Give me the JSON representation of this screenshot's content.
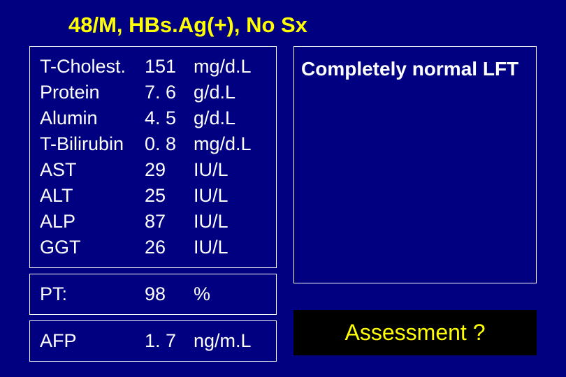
{
  "slide": {
    "title": "48/M, HBs.Ag(+), No Sx",
    "background_color": "#000080",
    "title_color": "#ffff00",
    "text_color": "#ffffff",
    "font_family": "Arial",
    "title_fontsize": 31,
    "body_fontsize": 27
  },
  "labs_main": {
    "type": "table",
    "columns": [
      "test",
      "value",
      "unit"
    ],
    "rows": [
      {
        "test": "T-Cholest.",
        "value": "151",
        "unit": "mg/d.L"
      },
      {
        "test": "Protein",
        "value": "7. 6",
        "unit": "g/d.L"
      },
      {
        "test": "Alumin",
        "value": "4. 5",
        "unit": "g/d.L"
      },
      {
        "test": "T-Bilirubin",
        "value": "0. 8",
        "unit": "mg/d.L"
      },
      {
        "test": "AST",
        "value": "29",
        "unit": "IU/L"
      },
      {
        "test": "ALT",
        "value": "25",
        "unit": "IU/L"
      },
      {
        "test": "ALP",
        "value": "87",
        "unit": "IU/L"
      },
      {
        "test": "GGT",
        "value": "26",
        "unit": "IU/L"
      }
    ]
  },
  "labs_pt": {
    "type": "table",
    "columns": [
      "test",
      "value",
      "unit"
    ],
    "rows": [
      {
        "test": "PT:",
        "value": "98",
        "unit": "%"
      }
    ]
  },
  "labs_afp": {
    "type": "table",
    "columns": [
      "test",
      "value",
      "unit"
    ],
    "rows": [
      {
        "test": "AFP",
        "value": "1. 7",
        "unit": "ng/m.L"
      }
    ]
  },
  "lft_note": "Completely normal LFT",
  "assessment": {
    "text": "Assessment ?",
    "background_color": "#000000",
    "text_color": "#ffff00",
    "fontsize": 32
  }
}
